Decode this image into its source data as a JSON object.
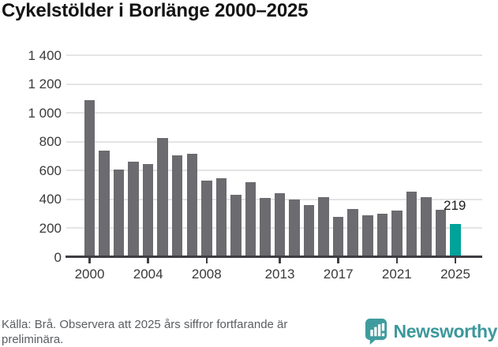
{
  "chart_data": {
    "type": "bar",
    "title": "Cykelstölder i Borlänge 2000–2025",
    "x": [
      2000,
      2001,
      2002,
      2003,
      2004,
      2005,
      2006,
      2007,
      2008,
      2009,
      2010,
      2011,
      2012,
      2013,
      2014,
      2015,
      2016,
      2017,
      2018,
      2019,
      2020,
      2021,
      2022,
      2023,
      2024,
      2025
    ],
    "values": [
      1080,
      730,
      600,
      655,
      635,
      820,
      700,
      710,
      525,
      540,
      425,
      510,
      400,
      435,
      390,
      355,
      405,
      270,
      325,
      280,
      290,
      315,
      445,
      405,
      320,
      219
    ],
    "ylim": [
      0,
      1400
    ],
    "yticks": [
      {
        "v": 0,
        "label": "0"
      },
      {
        "v": 200,
        "label": "200"
      },
      {
        "v": 400,
        "label": "400"
      },
      {
        "v": 600,
        "label": "600"
      },
      {
        "v": 800,
        "label": "800"
      },
      {
        "v": 1000,
        "label": "1 000"
      },
      {
        "v": 1200,
        "label": "1 200"
      },
      {
        "v": 1400,
        "label": "1 400"
      }
    ],
    "xticks": [
      {
        "v": 2000,
        "label": "2000"
      },
      {
        "v": 2004,
        "label": "2004"
      },
      {
        "v": 2008,
        "label": "2008"
      },
      {
        "v": 2013,
        "label": "2013"
      },
      {
        "v": 2017,
        "label": "2017"
      },
      {
        "v": 2021,
        "label": "2021"
      },
      {
        "v": 2025,
        "label": "2025"
      }
    ],
    "highlight_x": 2025,
    "annotation": {
      "text": "219",
      "x": 2025
    },
    "colors": {
      "bar": "#6b6b70",
      "highlight": "#00a29a",
      "grid": "#e4e4e4",
      "axis": "#3d3d42",
      "tick_text": "#3a3a3a"
    },
    "grid": true,
    "legend": "none"
  },
  "footer": {
    "source_lines": [
      "Källa: Brå. Observera att 2025 års siffror fortfarande är",
      "preliminära."
    ],
    "brand": "Newsworthy",
    "brand_color": "#3d989b",
    "logo_icon": "speech-bubble-bar-chart-icon"
  }
}
